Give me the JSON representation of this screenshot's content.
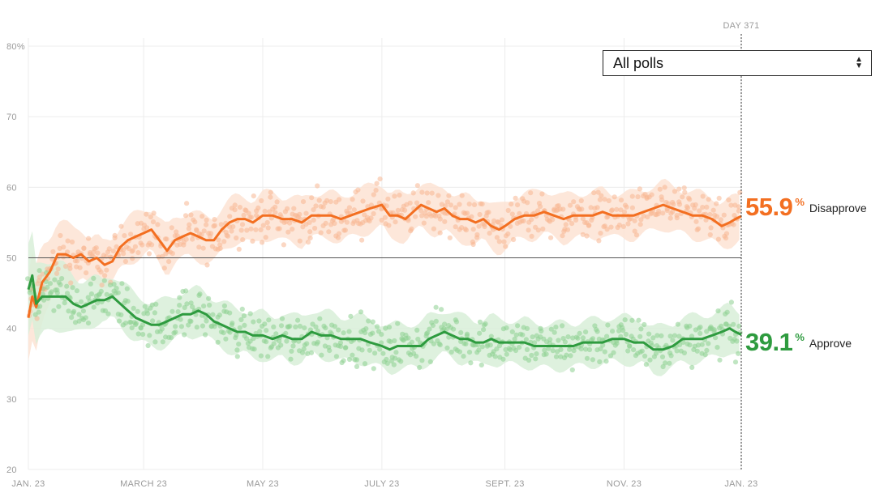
{
  "chart_data": {
    "type": "line",
    "y_ticks": [
      "80%",
      "70",
      "60",
      "50",
      "40",
      "30",
      "20"
    ],
    "y_tick_values": [
      80,
      70,
      60,
      50,
      40,
      30,
      20
    ],
    "ylim": [
      20,
      80
    ],
    "reference_line": 50,
    "x_tick_labels": [
      "JAN. 23",
      "MARCH 23",
      "MAY 23",
      "JULY 23",
      "SEPT. 23",
      "NOV. 23",
      "JAN. 23"
    ],
    "x_tick_days": [
      1,
      60,
      121,
      182,
      245,
      306,
      366
    ],
    "x_range_days": [
      1,
      366
    ],
    "grid": true,
    "current_day_label": "DAY 371",
    "series": [
      {
        "name": "Disapprove",
        "color": "#f36f21",
        "band_color": "#fde3d3",
        "dot_color": "#f7b692",
        "final_value": "55.9",
        "x_days": [
          1,
          3,
          5,
          8,
          12,
          16,
          20,
          24,
          28,
          32,
          36,
          40,
          44,
          48,
          52,
          56,
          60,
          64,
          68,
          72,
          76,
          80,
          84,
          88,
          92,
          96,
          100,
          104,
          108,
          112,
          116,
          121,
          126,
          131,
          136,
          141,
          146,
          151,
          156,
          161,
          166,
          171,
          176,
          182,
          186,
          190,
          194,
          198,
          202,
          206,
          210,
          214,
          218,
          222,
          226,
          230,
          234,
          238,
          242,
          245,
          250,
          255,
          260,
          265,
          270,
          275,
          280,
          285,
          290,
          295,
          300,
          306,
          311,
          316,
          321,
          326,
          331,
          336,
          341,
          346,
          351,
          356,
          360,
          363,
          366
        ],
        "values": [
          41.5,
          44.5,
          43,
          46.5,
          48,
          50.5,
          50.5,
          50,
          50.5,
          49.5,
          50,
          49,
          49.5,
          51.5,
          52.5,
          53,
          53.5,
          54,
          52.5,
          51,
          52.5,
          53,
          53.5,
          53,
          52.5,
          52.5,
          54,
          55,
          55.5,
          55.5,
          55,
          56,
          56,
          55.5,
          55.5,
          55,
          56,
          56,
          56,
          55.5,
          56,
          56.5,
          57,
          57.5,
          56,
          56,
          55.5,
          56.5,
          57.5,
          57,
          56.5,
          57,
          56,
          55.5,
          55.5,
          55,
          55.5,
          54.5,
          54,
          54.5,
          55.5,
          56,
          56,
          56.5,
          56,
          55.5,
          56,
          56,
          56,
          56.5,
          56,
          56,
          56,
          56.5,
          57,
          57.5,
          57,
          56.5,
          56,
          56,
          55.5,
          54.5,
          55,
          55.5,
          55.9
        ]
      },
      {
        "name": "Approve",
        "color": "#2e9b3f",
        "band_color": "#d8eed8",
        "dot_color": "#8ccf8f",
        "final_value": "39.1",
        "x_days": [
          1,
          3,
          5,
          8,
          12,
          16,
          20,
          24,
          28,
          32,
          36,
          40,
          44,
          48,
          52,
          56,
          60,
          64,
          68,
          72,
          76,
          80,
          84,
          88,
          92,
          96,
          100,
          104,
          108,
          112,
          116,
          121,
          126,
          131,
          136,
          141,
          146,
          151,
          156,
          161,
          166,
          171,
          176,
          182,
          186,
          190,
          194,
          198,
          202,
          206,
          210,
          214,
          218,
          222,
          226,
          230,
          234,
          238,
          242,
          245,
          250,
          255,
          260,
          265,
          270,
          275,
          280,
          285,
          290,
          295,
          300,
          306,
          311,
          316,
          321,
          326,
          331,
          336,
          341,
          346,
          351,
          356,
          360,
          363,
          366
        ],
        "values": [
          45.5,
          47.5,
          43.5,
          44.5,
          44.5,
          44.5,
          44.5,
          43.5,
          43,
          43.5,
          44,
          44,
          44.5,
          43.5,
          42.5,
          41.5,
          41,
          40.5,
          40.5,
          41,
          41.5,
          42,
          42,
          42.5,
          42,
          41,
          40.5,
          40,
          39.5,
          39.5,
          39,
          39,
          38.5,
          39,
          38.5,
          38.5,
          39.5,
          39,
          39,
          38.5,
          38.5,
          38.5,
          38,
          37.5,
          37,
          37.5,
          37.5,
          37.5,
          37.5,
          38.5,
          39,
          39.5,
          39,
          38.5,
          38.5,
          38,
          38,
          38.5,
          38,
          38,
          38,
          38,
          37.5,
          37.5,
          37.5,
          37.5,
          37.5,
          38,
          38,
          38,
          38.5,
          38.5,
          38,
          38,
          37,
          37,
          37.5,
          38.5,
          38.5,
          38.5,
          39,
          39.5,
          40,
          39.5,
          39.1
        ]
      }
    ]
  },
  "poll_filter": {
    "selected": "All polls"
  }
}
